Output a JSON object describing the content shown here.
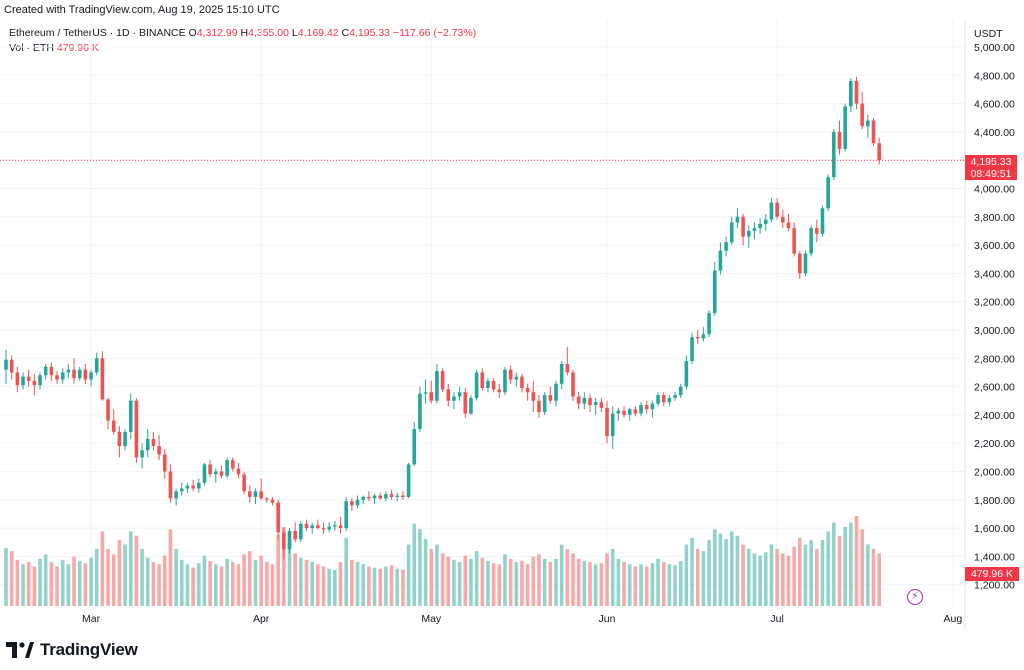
{
  "attribution": "Created with TradingView.com, Aug 19, 2025 15:10 UTC",
  "legend": {
    "symbol": "Ethereum / TetherUS · 1D · BINANCE",
    "open_label": "O",
    "open": "4,312.99",
    "high_label": "H",
    "high": "4,355.00",
    "low_label": "L",
    "low": "4,169.42",
    "close_label": "C",
    "close": "4,195.33",
    "change": "−117.66 (−2.73%)",
    "vol_label": "Vol · ETH",
    "vol": "479.96 K"
  },
  "axis": {
    "currency": "USDT",
    "y_ticks": [
      "5,000.00",
      "4,800.00",
      "4,600.00",
      "4,400.00",
      "4,200.00",
      "4,000.00",
      "3,800.00",
      "3,600.00",
      "3,400.00",
      "3,200.00",
      "3,000.00",
      "2,800.00",
      "2,600.00",
      "2,400.00",
      "2,200.00",
      "2,000.00",
      "1,800.00",
      "1,600.00",
      "1,400.00",
      "1,200.00"
    ],
    "x_ticks": [
      "Mar",
      "Apr",
      "May",
      "Jun",
      "Jul",
      "Aug"
    ]
  },
  "price_label": {
    "price": "4,195.33",
    "countdown": "08:49:51"
  },
  "volume_label": "479.96 K",
  "brand": "TradingView",
  "colors": {
    "up": "#26a69a",
    "down": "#ef5350",
    "up_vol": "#92d2cc",
    "down_vol": "#f7a9a7",
    "grid": "#f0f3fa",
    "price_line": "#f23645"
  },
  "chart_data": {
    "type": "candlestick",
    "interval": "1D",
    "ylim": [
      1100,
      5080
    ],
    "grid": true,
    "x_tick_positions": {
      "Mar": 15,
      "Apr": 45,
      "May": 75,
      "Jun": 106,
      "Jul": 136,
      "Aug": 167
    },
    "candles": [
      [
        2720,
        2860,
        2620,
        2790,
        530
      ],
      [
        2790,
        2820,
        2650,
        2700,
        500
      ],
      [
        2700,
        2740,
        2560,
        2610,
        420
      ],
      [
        2610,
        2700,
        2580,
        2670,
        380
      ],
      [
        2670,
        2720,
        2600,
        2640,
        400
      ],
      [
        2640,
        2690,
        2540,
        2610,
        360
      ],
      [
        2610,
        2700,
        2580,
        2680,
        430
      ],
      [
        2680,
        2760,
        2650,
        2740,
        470
      ],
      [
        2740,
        2770,
        2640,
        2680,
        400
      ],
      [
        2680,
        2710,
        2620,
        2650,
        360
      ],
      [
        2650,
        2730,
        2620,
        2700,
        420
      ],
      [
        2700,
        2760,
        2660,
        2720,
        380
      ],
      [
        2720,
        2800,
        2620,
        2660,
        450
      ],
      [
        2660,
        2740,
        2640,
        2720,
        410
      ],
      [
        2720,
        2760,
        2620,
        2650,
        390
      ],
      [
        2650,
        2720,
        2600,
        2700,
        440
      ],
      [
        2700,
        2840,
        2680,
        2800,
        520
      ],
      [
        2800,
        2850,
        2500,
        2510,
        680
      ],
      [
        2510,
        2520,
        2300,
        2360,
        520
      ],
      [
        2360,
        2440,
        2260,
        2280,
        470
      ],
      [
        2280,
        2320,
        2100,
        2180,
        600
      ],
      [
        2180,
        2300,
        2150,
        2280,
        560
      ],
      [
        2280,
        2550,
        2230,
        2500,
        680
      ],
      [
        2500,
        2520,
        2060,
        2100,
        640
      ],
      [
        2100,
        2200,
        2020,
        2150,
        520
      ],
      [
        2150,
        2300,
        2100,
        2230,
        440
      ],
      [
        2230,
        2280,
        2150,
        2180,
        400
      ],
      [
        2180,
        2260,
        2080,
        2120,
        380
      ],
      [
        2120,
        2160,
        1950,
        2000,
        460
      ],
      [
        2000,
        2050,
        1780,
        1810,
        700
      ],
      [
        1810,
        1880,
        1760,
        1860,
        520
      ],
      [
        1860,
        1920,
        1830,
        1880,
        420
      ],
      [
        1880,
        1920,
        1850,
        1900,
        380
      ],
      [
        1900,
        1940,
        1860,
        1880,
        350
      ],
      [
        1880,
        1950,
        1850,
        1920,
        390
      ],
      [
        1920,
        2060,
        1900,
        2050,
        460
      ],
      [
        2050,
        2080,
        1960,
        1980,
        410
      ],
      [
        1980,
        2020,
        1920,
        2000,
        380
      ],
      [
        2000,
        2040,
        1950,
        1970,
        360
      ],
      [
        1970,
        2100,
        1950,
        2080,
        430
      ],
      [
        2080,
        2100,
        2000,
        2020,
        400
      ],
      [
        2020,
        2060,
        1950,
        1980,
        380
      ],
      [
        1980,
        2000,
        1840,
        1860,
        470
      ],
      [
        1860,
        1900,
        1780,
        1820,
        500
      ],
      [
        1820,
        1880,
        1770,
        1860,
        420
      ],
      [
        1860,
        1950,
        1800,
        1810,
        460
      ],
      [
        1810,
        1820,
        1780,
        1800,
        400
      ],
      [
        1800,
        1820,
        1760,
        1780,
        380
      ],
      [
        1780,
        1800,
        1520,
        1570,
        650
      ],
      [
        1570,
        1600,
        1380,
        1450,
        720
      ],
      [
        1450,
        1600,
        1420,
        1580,
        560
      ],
      [
        1580,
        1640,
        1500,
        1520,
        480
      ],
      [
        1520,
        1650,
        1500,
        1630,
        440
      ],
      [
        1630,
        1660,
        1580,
        1600,
        420
      ],
      [
        1600,
        1640,
        1560,
        1620,
        400
      ],
      [
        1620,
        1660,
        1590,
        1600,
        380
      ],
      [
        1600,
        1640,
        1560,
        1590,
        360
      ],
      [
        1590,
        1640,
        1570,
        1610,
        340
      ],
      [
        1610,
        1650,
        1580,
        1620,
        330
      ],
      [
        1620,
        1680,
        1560,
        1600,
        400
      ],
      [
        1600,
        1820,
        1580,
        1790,
        620
      ],
      [
        1790,
        1810,
        1720,
        1760,
        420
      ],
      [
        1760,
        1830,
        1740,
        1800,
        400
      ],
      [
        1800,
        1830,
        1770,
        1820,
        380
      ],
      [
        1820,
        1860,
        1790,
        1810,
        360
      ],
      [
        1810,
        1840,
        1770,
        1830,
        350
      ],
      [
        1830,
        1850,
        1800,
        1810,
        340
      ],
      [
        1810,
        1860,
        1790,
        1840,
        360
      ],
      [
        1840,
        1870,
        1800,
        1820,
        370
      ],
      [
        1820,
        1850,
        1790,
        1830,
        340
      ],
      [
        1830,
        1860,
        1800,
        1820,
        330
      ],
      [
        1820,
        2060,
        1810,
        2050,
        560
      ],
      [
        2050,
        2350,
        2040,
        2300,
        750
      ],
      [
        2300,
        2600,
        2280,
        2550,
        700
      ],
      [
        2550,
        2650,
        2480,
        2560,
        610
      ],
      [
        2560,
        2640,
        2480,
        2500,
        520
      ],
      [
        2500,
        2760,
        2480,
        2710,
        560
      ],
      [
        2710,
        2730,
        2560,
        2580,
        480
      ],
      [
        2580,
        2620,
        2460,
        2500,
        450
      ],
      [
        2500,
        2560,
        2440,
        2530,
        420
      ],
      [
        2530,
        2600,
        2500,
        2560,
        400
      ],
      [
        2560,
        2590,
        2380,
        2410,
        460
      ],
      [
        2410,
        2540,
        2400,
        2520,
        430
      ],
      [
        2520,
        2720,
        2500,
        2700,
        500
      ],
      [
        2700,
        2730,
        2570,
        2590,
        440
      ],
      [
        2590,
        2660,
        2560,
        2640,
        410
      ],
      [
        2640,
        2660,
        2560,
        2580,
        390
      ],
      [
        2580,
        2620,
        2520,
        2560,
        380
      ],
      [
        2560,
        2740,
        2540,
        2720,
        470
      ],
      [
        2720,
        2750,
        2620,
        2650,
        430
      ],
      [
        2650,
        2700,
        2600,
        2670,
        400
      ],
      [
        2670,
        2690,
        2560,
        2590,
        410
      ],
      [
        2590,
        2620,
        2500,
        2560,
        380
      ],
      [
        2560,
        2640,
        2420,
        2500,
        450
      ],
      [
        2500,
        2540,
        2380,
        2420,
        470
      ],
      [
        2420,
        2560,
        2400,
        2540,
        430
      ],
      [
        2540,
        2600,
        2480,
        2500,
        400
      ],
      [
        2500,
        2640,
        2460,
        2620,
        430
      ],
      [
        2620,
        2780,
        2580,
        2760,
        560
      ],
      [
        2760,
        2880,
        2680,
        2700,
        520
      ],
      [
        2700,
        2720,
        2500,
        2530,
        480
      ],
      [
        2530,
        2560,
        2440,
        2480,
        430
      ],
      [
        2480,
        2560,
        2440,
        2520,
        410
      ],
      [
        2520,
        2550,
        2420,
        2470,
        400
      ],
      [
        2470,
        2520,
        2400,
        2490,
        380
      ],
      [
        2490,
        2520,
        2420,
        2450,
        390
      ],
      [
        2450,
        2500,
        2200,
        2250,
        480
      ],
      [
        2250,
        2460,
        2160,
        2410,
        520
      ],
      [
        2410,
        2450,
        2360,
        2430,
        430
      ],
      [
        2430,
        2460,
        2380,
        2400,
        400
      ],
      [
        2400,
        2450,
        2360,
        2440,
        380
      ],
      [
        2440,
        2460,
        2390,
        2410,
        360
      ],
      [
        2410,
        2490,
        2390,
        2470,
        380
      ],
      [
        2470,
        2500,
        2410,
        2440,
        360
      ],
      [
        2440,
        2500,
        2380,
        2480,
        390
      ],
      [
        2480,
        2560,
        2460,
        2540,
        430
      ],
      [
        2540,
        2560,
        2460,
        2490,
        400
      ],
      [
        2490,
        2540,
        2460,
        2520,
        380
      ],
      [
        2520,
        2560,
        2500,
        2540,
        370
      ],
      [
        2540,
        2620,
        2520,
        2600,
        410
      ],
      [
        2600,
        2820,
        2580,
        2780,
        560
      ],
      [
        2780,
        2980,
        2760,
        2950,
        620
      ],
      [
        2950,
        3000,
        2900,
        2940,
        520
      ],
      [
        2940,
        3020,
        2920,
        2970,
        500
      ],
      [
        2970,
        3140,
        2950,
        3120,
        600
      ],
      [
        3120,
        3480,
        3100,
        3420,
        700
      ],
      [
        3420,
        3620,
        3390,
        3560,
        660
      ],
      [
        3560,
        3660,
        3520,
        3620,
        610
      ],
      [
        3620,
        3800,
        3600,
        3760,
        680
      ],
      [
        3760,
        3860,
        3720,
        3800,
        640
      ],
      [
        3800,
        3820,
        3600,
        3660,
        560
      ],
      [
        3660,
        3740,
        3580,
        3700,
        520
      ],
      [
        3700,
        3760,
        3640,
        3720,
        480
      ],
      [
        3720,
        3790,
        3680,
        3750,
        460
      ],
      [
        3750,
        3820,
        3700,
        3780,
        490
      ],
      [
        3780,
        3930,
        3760,
        3900,
        560
      ],
      [
        3900,
        3930,
        3780,
        3800,
        520
      ],
      [
        3800,
        3850,
        3720,
        3760,
        480
      ],
      [
        3760,
        3820,
        3700,
        3720,
        460
      ],
      [
        3720,
        3760,
        3520,
        3540,
        540
      ],
      [
        3540,
        3560,
        3360,
        3400,
        620
      ],
      [
        3400,
        3560,
        3380,
        3540,
        560
      ],
      [
        3540,
        3740,
        3520,
        3720,
        600
      ],
      [
        3720,
        3780,
        3620,
        3680,
        520
      ],
      [
        3680,
        3880,
        3660,
        3860,
        600
      ],
      [
        3860,
        4100,
        3840,
        4080,
        680
      ],
      [
        4080,
        4420,
        4060,
        4400,
        760
      ],
      [
        4400,
        4480,
        4240,
        4280,
        640
      ],
      [
        4280,
        4600,
        4260,
        4580,
        720
      ],
      [
        4580,
        4780,
        4540,
        4760,
        760
      ],
      [
        4760,
        4790,
        4560,
        4600,
        820
      ],
      [
        4600,
        4680,
        4420,
        4440,
        700
      ],
      [
        4440,
        4520,
        4360,
        4480,
        560
      ],
      [
        4480,
        4500,
        4300,
        4320,
        520
      ],
      [
        4320,
        4360,
        4170,
        4200,
        480
      ]
    ]
  }
}
